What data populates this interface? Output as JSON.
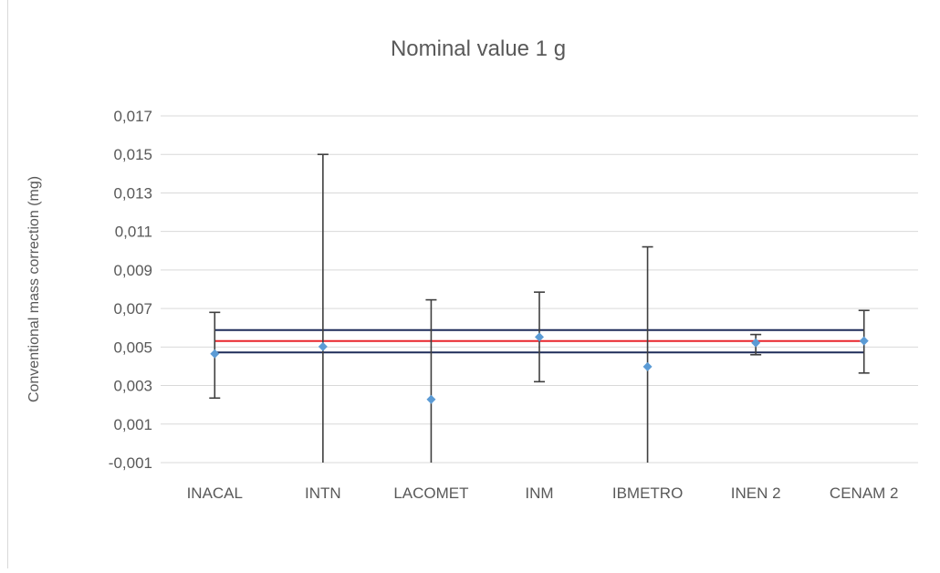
{
  "chart_data": {
    "type": "scatter",
    "title": "Nominal value 1 g",
    "xlabel": "",
    "ylabel": "Conventional mass correction (mg)",
    "categories": [
      "INACAL",
      "INTN",
      "LACOMET",
      "INM",
      "IBMETRO",
      "INEN 2",
      "CENAM 2"
    ],
    "ylim": [
      -0.001,
      0.017
    ],
    "yticks": [
      -0.001,
      0.001,
      0.003,
      0.005,
      0.007,
      0.009,
      0.011,
      0.013,
      0.015,
      0.017
    ],
    "ytick_labels": [
      "-0,001",
      "0,001",
      "0,003",
      "0,005",
      "0,007",
      "0,009",
      "0,011",
      "0,013",
      "0,015",
      "0,017"
    ],
    "grid": true,
    "legend": "none",
    "series": [
      {
        "values": [
          0.00465,
          0.00502,
          0.00228,
          0.00552,
          0.00398,
          0.00522,
          0.00532
        ],
        "error_upper": [
          0.0068,
          0.015,
          0.00745,
          0.00785,
          0.0102,
          0.00565,
          0.0069
        ],
        "error_lower": [
          0.00235,
          -0.001,
          -0.001,
          0.0032,
          -0.001,
          0.0046,
          0.00365
        ]
      }
    ],
    "reference_lines": [
      {
        "value": 0.00588,
        "color": "#1f2d5a"
      },
      {
        "value": 0.00531,
        "color": "#e8252b"
      },
      {
        "value": 0.00472,
        "color": "#1f2d5a"
      }
    ],
    "colors": {
      "marker": "#5b9bd5",
      "errorbar": "#3f3f3f",
      "grid": "#d9d9d9",
      "text": "#595959"
    }
  }
}
